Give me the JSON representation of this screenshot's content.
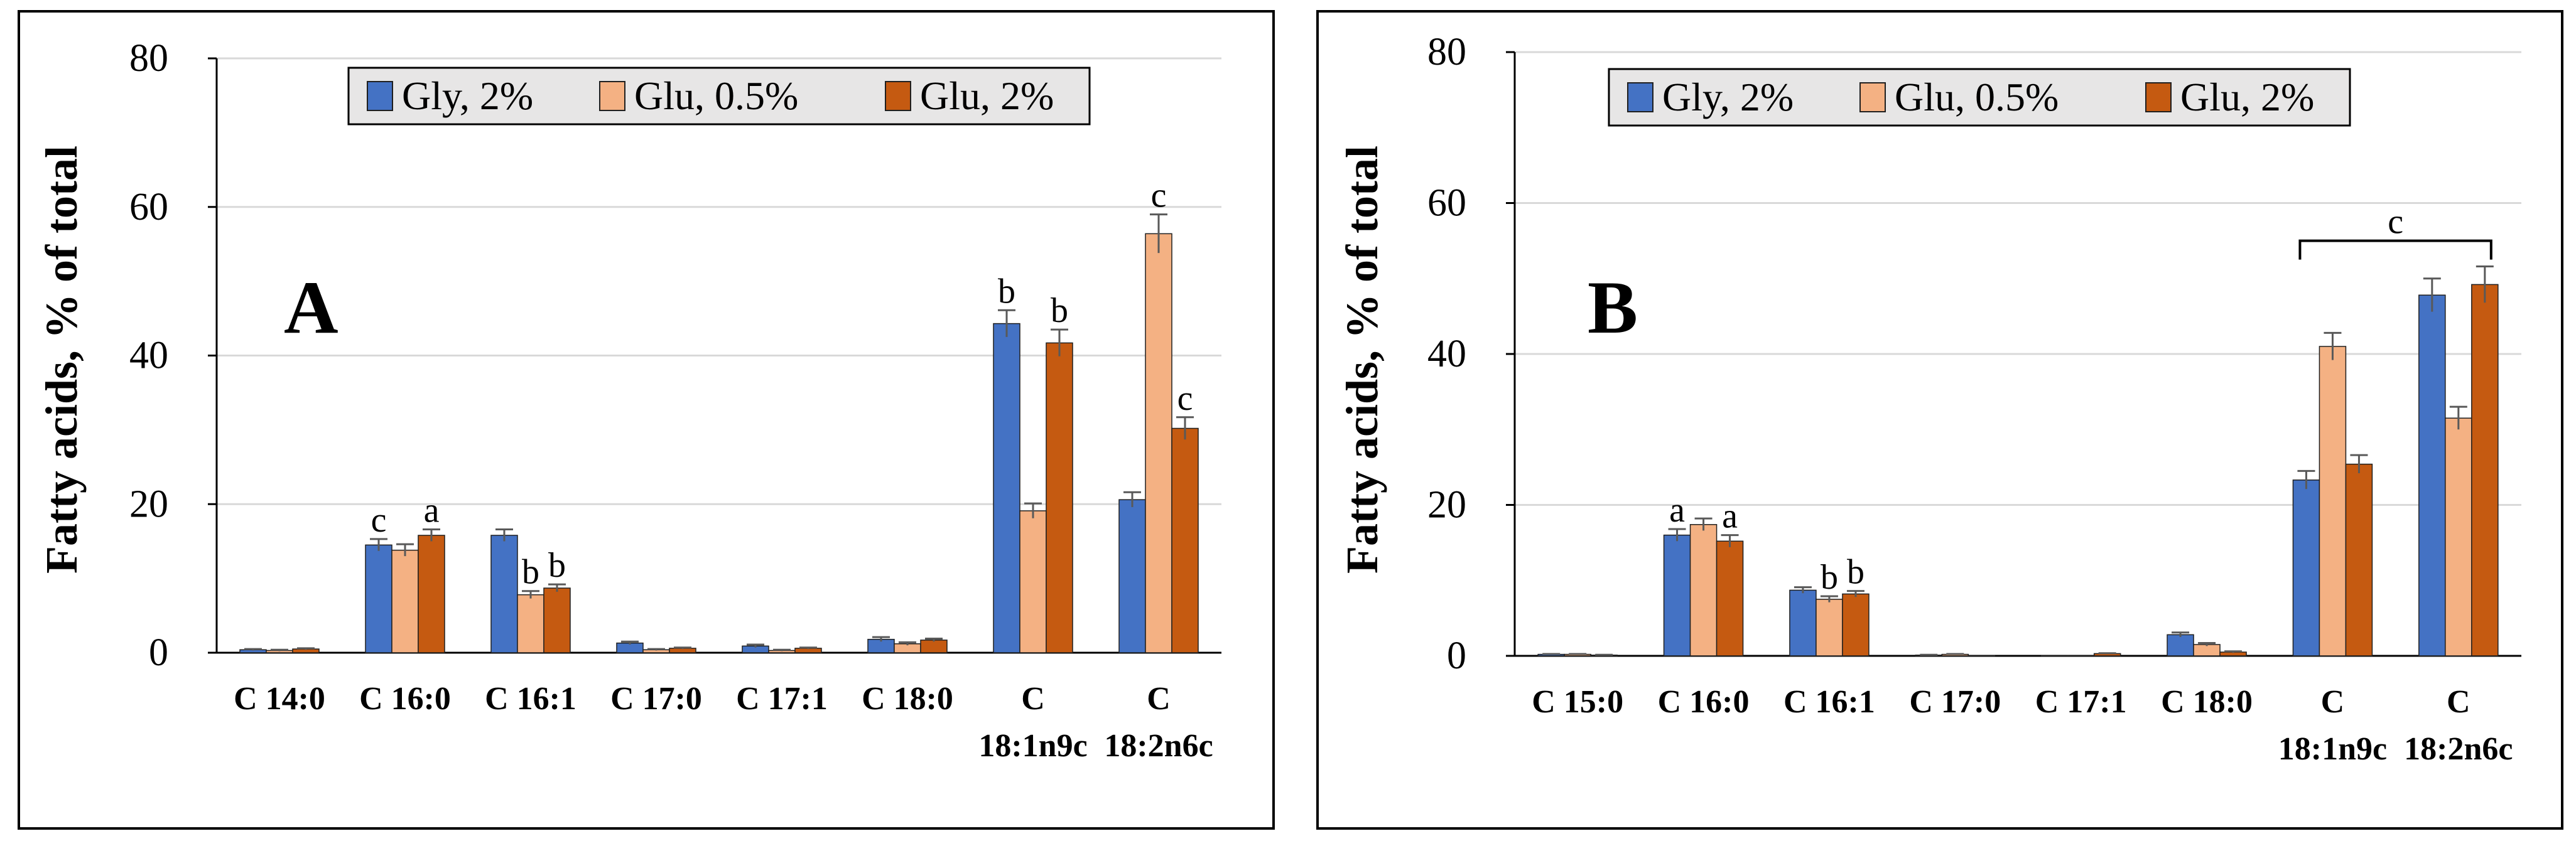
{
  "colors": {
    "gly": "#4472c4",
    "glu05": "#f4b183",
    "glu2": "#c55a11",
    "grid": "#d9d9d9",
    "border": "#000000",
    "legend_bg": "#e7e6e6"
  },
  "chart_data": [
    {
      "type": "bar",
      "panel_label": "A",
      "ylabel": "Fatty acids, % of total",
      "ylim": [
        0,
        80
      ],
      "yticks": [
        "0",
        "20",
        "40",
        "60",
        "80"
      ],
      "legend_position": "top-center",
      "categories": [
        {
          "line1": "C 14:0",
          "line2": ""
        },
        {
          "line1": "C 16:0",
          "line2": ""
        },
        {
          "line1": "C 16:1",
          "line2": ""
        },
        {
          "line1": "C 17:0",
          "line2": ""
        },
        {
          "line1": "C 17:1",
          "line2": ""
        },
        {
          "line1": "C 18:0",
          "line2": ""
        },
        {
          "line1": "C",
          "line2": "18:1n9c"
        },
        {
          "line1": "C",
          "line2": "18:2n6c"
        }
      ],
      "series": [
        {
          "name": "Gly, 2%",
          "color": "gly",
          "values": [
            0.4,
            14.5,
            15.8,
            1.3,
            0.9,
            1.8,
            44.3,
            20.6
          ],
          "errors": [
            0.1,
            0.8,
            0.8,
            0.2,
            0.2,
            0.3,
            1.8,
            1.0
          ]
        },
        {
          "name": "Glu, 0.5%",
          "color": "glu05",
          "values": [
            0.3,
            13.8,
            7.8,
            0.4,
            0.3,
            1.2,
            19.1,
            56.4
          ],
          "errors": [
            0.1,
            0.8,
            0.5,
            0.1,
            0.1,
            0.2,
            1.0,
            2.6
          ]
        },
        {
          "name": "Glu, 2%",
          "color": "glu2",
          "values": [
            0.5,
            15.8,
            8.7,
            0.6,
            0.6,
            1.7,
            41.7,
            30.2
          ],
          "errors": [
            0.1,
            0.8,
            0.5,
            0.1,
            0.1,
            0.2,
            1.8,
            1.5
          ]
        }
      ],
      "annotations": [
        {
          "category": 1,
          "series": 0,
          "text": "c"
        },
        {
          "category": 1,
          "series": 2,
          "text": "a"
        },
        {
          "category": 2,
          "series": 1,
          "text": "b"
        },
        {
          "category": 2,
          "series": 2,
          "text": "b"
        },
        {
          "category": 6,
          "series": 0,
          "text": "b"
        },
        {
          "category": 6,
          "series": 2,
          "text": "b"
        },
        {
          "category": 7,
          "series": 1,
          "text": "c"
        },
        {
          "category": 7,
          "series": 2,
          "text": "c"
        }
      ],
      "bracket": null
    },
    {
      "type": "bar",
      "panel_label": "B",
      "ylabel": "Fatty acids, % of total",
      "ylim": [
        0,
        80
      ],
      "yticks": [
        "0",
        "20",
        "40",
        "60",
        "80"
      ],
      "legend_position": "top-center",
      "categories": [
        {
          "line1": "C 15:0",
          "line2": ""
        },
        {
          "line1": "C 16:0",
          "line2": ""
        },
        {
          "line1": "C 16:1",
          "line2": ""
        },
        {
          "line1": "C 17:0",
          "line2": ""
        },
        {
          "line1": "C 17:1",
          "line2": ""
        },
        {
          "line1": "C 18:0",
          "line2": ""
        },
        {
          "line1": "C",
          "line2": "18:1n9c"
        },
        {
          "line1": "C",
          "line2": "18:2n6c"
        }
      ],
      "series": [
        {
          "name": "Gly, 2%",
          "color": "gly",
          "values": [
            0.2,
            16.0,
            8.7,
            0.1,
            0.0,
            2.8,
            23.3,
            47.8
          ],
          "errors": [
            0.05,
            0.8,
            0.4,
            0.05,
            0.0,
            0.3,
            1.2,
            2.2
          ]
        },
        {
          "name": "Glu, 0.5%",
          "color": "glu05",
          "values": [
            0.2,
            17.4,
            7.5,
            0.2,
            0.0,
            1.5,
            41.0,
            31.5
          ],
          "errors": [
            0.05,
            0.8,
            0.4,
            0.05,
            0.0,
            0.2,
            1.8,
            1.5
          ]
        },
        {
          "name": "Glu, 2%",
          "color": "glu2",
          "values": [
            0.1,
            15.2,
            8.2,
            0.0,
            0.3,
            0.5,
            25.4,
            49.2
          ],
          "errors": [
            0.05,
            0.8,
            0.4,
            0.0,
            0.05,
            0.1,
            1.2,
            2.4
          ]
        }
      ],
      "annotations": [
        {
          "category": 1,
          "series": 0,
          "text": "a"
        },
        {
          "category": 1,
          "series": 2,
          "text": "a"
        },
        {
          "category": 2,
          "series": 1,
          "text": "b"
        },
        {
          "category": 2,
          "series": 2,
          "text": "b"
        }
      ],
      "bracket": {
        "from_category": 6,
        "to_category": 7,
        "value": 55,
        "text": "c"
      }
    }
  ]
}
